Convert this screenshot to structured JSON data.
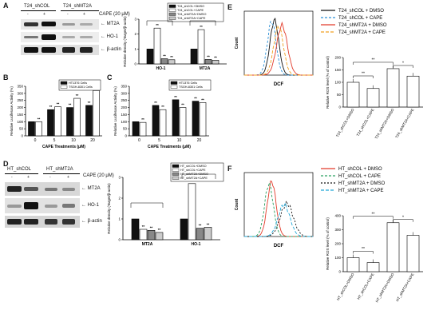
{
  "panels": {
    "A": {
      "letter": "A",
      "blot": {
        "groups": [
          "T24_shCOL",
          "T24_shMT2A"
        ],
        "signs": [
          "-",
          "+",
          "-",
          "+"
        ],
        "treatment": "CAPE (20 μM)",
        "rows": [
          "MT2A",
          "HO-1",
          "β-actin"
        ]
      }
    },
    "B": {
      "letter": "B"
    },
    "C": {
      "letter": "C"
    },
    "D": {
      "letter": "D",
      "blot": {
        "groups": [
          "HT_shCOL",
          "HT_shMT2A"
        ],
        "signs": [
          "-",
          "+",
          "-",
          "+"
        ],
        "treatment": "CAPE (20 μM)",
        "rows": [
          "MT2A",
          "HO-1",
          "β-actin"
        ]
      }
    },
    "E": {
      "letter": "E",
      "xlabel": "DCF",
      "ylabel": "Count"
    },
    "F": {
      "letter": "F",
      "xlabel": "DCF",
      "ylabel": "Count"
    }
  },
  "chart_data": [
    {
      "id": "A-density",
      "type": "bar",
      "ylabel": "Relative density (Target/β-actin)",
      "categories": [
        "HO-1",
        "MT2A"
      ],
      "series": [
        {
          "name": "T24_shCOL+DMSO",
          "values": [
            1.0,
            1.0
          ],
          "color": "#111111"
        },
        {
          "name": "T24_shCOL+CAPE",
          "values": [
            2.4,
            2.3
          ],
          "color": "#ffffff"
        },
        {
          "name": "T24_shMT2A+DMSO",
          "values": [
            0.35,
            0.3
          ],
          "color": "#888888"
        },
        {
          "name": "T24_shMT2A+CAPE",
          "values": [
            0.28,
            0.25
          ],
          "color": "#cccccc"
        }
      ],
      "ylim": [
        0,
        3
      ]
    },
    {
      "id": "B",
      "type": "bar",
      "ylabel": "Relative Luciferase Activity (%)",
      "xlabel": "CAPE Treatments (μM)",
      "categories": [
        "0",
        "5",
        "10",
        "20"
      ],
      "series": [
        {
          "name": "HT1376 Cells",
          "values": [
            100,
            185,
            200,
            215
          ],
          "color": "#111111"
        },
        {
          "name": "TSGH-8301 Cells",
          "values": [
            100,
            205,
            265,
            320
          ],
          "color": "#ffffff"
        }
      ],
      "yticks": [
        0,
        50,
        100,
        150,
        200,
        250,
        300,
        350
      ],
      "ylim": [
        0,
        350
      ]
    },
    {
      "id": "C",
      "type": "bar",
      "ylabel": "Relative Luciferase Activity (%)",
      "xlabel": "CAPE Treatments (μM)",
      "categories": [
        "0",
        "5",
        "10",
        "20"
      ],
      "series": [
        {
          "name": "HT1376 Cells",
          "values": [
            100,
            215,
            255,
            245
          ],
          "color": "#111111"
        },
        {
          "name": "TSGH-8301 Cells",
          "values": [
            95,
            185,
            200,
            235
          ],
          "color": "#ffffff"
        }
      ],
      "yticks": [
        0,
        50,
        100,
        150,
        200,
        250,
        300,
        350
      ],
      "ylim": [
        0,
        350
      ]
    },
    {
      "id": "D-density",
      "type": "bar",
      "ylabel": "Relative density (Target/β-actin)",
      "categories": [
        "MT2A",
        "HO-1"
      ],
      "series": [
        {
          "name": "HT_shCOL+DMSO",
          "values": [
            1.0,
            1.0
          ],
          "color": "#111111"
        },
        {
          "name": "HT_shCOL+CAPE",
          "values": [
            0.5,
            2.7
          ],
          "color": "#ffffff"
        },
        {
          "name": "HT_shMT2A+DMSO",
          "values": [
            0.45,
            0.55
          ],
          "color": "#888888"
        },
        {
          "name": "HT_shMT2A+CAPE",
          "values": [
            0.35,
            0.6
          ],
          "color": "#cccccc"
        }
      ],
      "ylim": [
        0,
        3
      ]
    },
    {
      "id": "E-ros",
      "type": "bar",
      "ylabel": "Relative ROS level (% of control)",
      "categories": [
        "T24_shCOL+DMSO",
        "T24_shCOL+CAPE",
        "T24_shMT2A+DMSO",
        "T24_shMT2A+CAPE"
      ],
      "values": [
        100,
        75,
        155,
        125
      ],
      "ylim": [
        0,
        200
      ]
    },
    {
      "id": "F-ros",
      "type": "bar",
      "ylabel": "Relative ROS level (% of control)",
      "categories": [
        "HT_shCOL+DMSO",
        "HT_shCOL+CAPE",
        "HT_shMT2A+DMSO",
        "HT_shMT2A+CAPE"
      ],
      "values": [
        100,
        65,
        350,
        260
      ],
      "ylim": [
        0,
        400
      ]
    }
  ],
  "legends": {
    "E": [
      {
        "label": "T24_shCOL + DMSO",
        "color": "#111111",
        "dash": ""
      },
      {
        "label": "T24_shCOL + CAPE",
        "color": "#2a8fd6",
        "dash": "3,2"
      },
      {
        "label": "T24_shMT2A + DMSO",
        "color": "#e23b2a",
        "dash": ""
      },
      {
        "label": "T24_shMT2A + CAPE",
        "color": "#f0a020",
        "dash": "4,2"
      }
    ],
    "F": [
      {
        "label": "HT_shCOL + DMSO",
        "color": "#e23b2a",
        "dash": ""
      },
      {
        "label": "HT_shCOL + CAPE",
        "color": "#2aa060",
        "dash": "3,2"
      },
      {
        "label": "HT_shMT2A + DMSO",
        "color": "#111111",
        "dash": "2,2"
      },
      {
        "label": "HT_shMT2A + CAPE",
        "color": "#22a8d8",
        "dash": "4,2"
      }
    ]
  },
  "annotations": {
    "sig": "**",
    "sig1": "*"
  }
}
